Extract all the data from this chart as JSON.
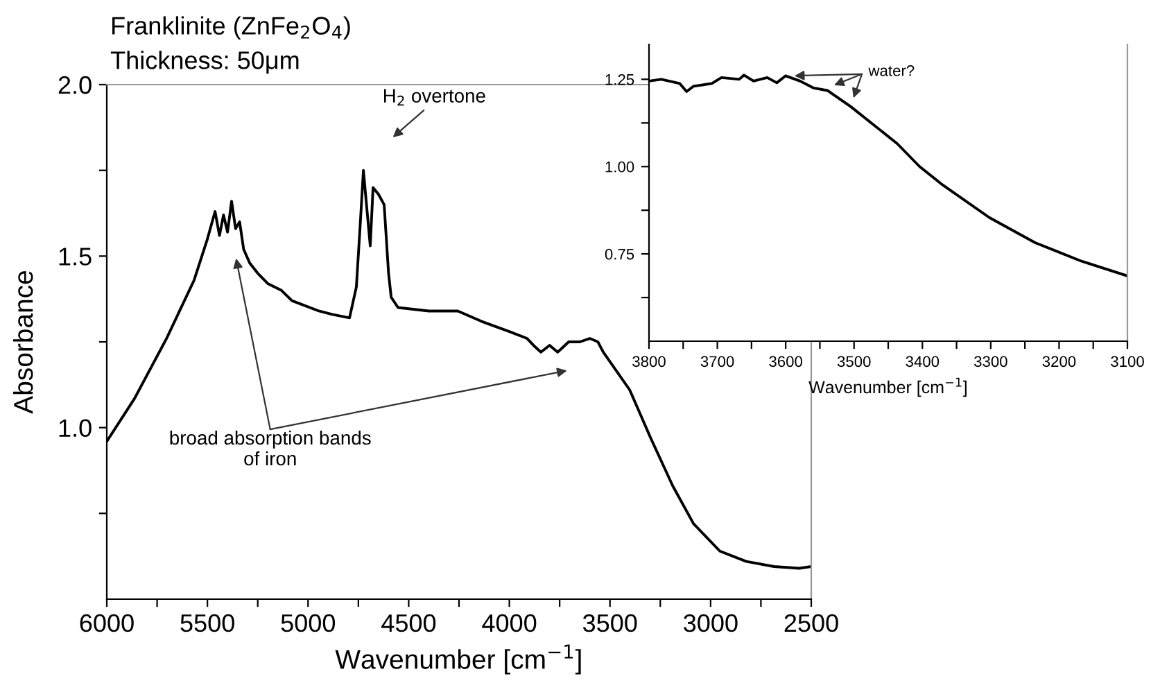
{
  "chart_data": [
    {
      "type": "line",
      "title": "Franklinite (ZnFe$_{2}$O$_{4}$)",
      "subtitle": "Thickness: 50μm",
      "xlabel": "Wavenumber [cm$^{−1}$]",
      "ylabel": "Absorbance",
      "xlim": [
        6000,
        2500
      ],
      "ylim": [
        0.5,
        2.0
      ],
      "xticks": [
        6000,
        {
          "value": 5750,
          "label": null
        },
        5500,
        {
          "value": 5250,
          "label": null
        },
        5000,
        {
          "value": 4750,
          "label": null
        },
        4500,
        {
          "value": 4250,
          "label": null
        },
        4000,
        {
          "value": 3750,
          "label": null
        },
        3500,
        {
          "value": 3250,
          "label": null
        },
        3000,
        {
          "value": 2750,
          "label": null
        },
        2500
      ],
      "yticks": [
        {
          "value": 0.75,
          "label": null
        },
        {
          "value": 1.0,
          "label": "1.0"
        },
        {
          "value": 1.25,
          "label": null
        },
        1.5,
        {
          "value": 1.75,
          "label": null
        },
        {
          "value": 2.0,
          "label": "2.0"
        }
      ],
      "grid": false,
      "legend": false,
      "marker": "none",
      "line_style": "solid",
      "series": [
        {
          "color": "#000000",
          "x": [
            6000,
            5862,
            5703,
            5566,
            5500,
            5462,
            5440,
            5420,
            5400,
            5380,
            5360,
            5340,
            5320,
            5290,
            5250,
            5200,
            5132,
            5080,
            5035,
            4946,
            4880,
            4794,
            4760,
            4740,
            4725,
            4705,
            4691,
            4677,
            4650,
            4622,
            4600,
            4587,
            4553,
            4400,
            4256,
            4139,
            4000,
            3912,
            3880,
            3843,
            3800,
            3760,
            3705,
            3650,
            3600,
            3560,
            3533,
            3402,
            3298,
            3188,
            3085,
            2954,
            2823,
            2685,
            2560,
            2500
          ],
          "values": [
            0.96,
            1.085,
            1.26,
            1.43,
            1.55,
            1.63,
            1.56,
            1.62,
            1.57,
            1.66,
            1.58,
            1.6,
            1.52,
            1.48,
            1.45,
            1.42,
            1.4,
            1.37,
            1.36,
            1.34,
            1.33,
            1.32,
            1.41,
            1.6,
            1.75,
            1.62,
            1.53,
            1.7,
            1.68,
            1.65,
            1.45,
            1.38,
            1.35,
            1.34,
            1.34,
            1.31,
            1.28,
            1.26,
            1.24,
            1.22,
            1.24,
            1.22,
            1.25,
            1.25,
            1.26,
            1.25,
            1.22,
            1.11,
            0.97,
            0.83,
            0.72,
            0.64,
            0.61,
            0.595,
            0.59,
            0.595
          ]
        }
      ],
      "annotations": [
        "H$_{2}$ overtone",
        "broad absorption bands\nof iron"
      ]
    },
    {
      "type": "line",
      "xlabel": "Wavenumber [cm$^{−1}$]",
      "xlim": [
        3800,
        3100
      ],
      "ylim": [
        0.5,
        1.35
      ],
      "xticks": [
        3800,
        {
          "value": 3750,
          "label": null
        },
        3700,
        {
          "value": 3650,
          "label": null
        },
        3600,
        {
          "value": 3550,
          "label": null
        },
        3500,
        {
          "value": 3450,
          "label": null
        },
        3400,
        {
          "value": 3350,
          "label": null
        },
        3300,
        {
          "value": 3250,
          "label": null
        },
        3200,
        {
          "value": 3150,
          "label": null
        },
        3100
      ],
      "yticks": [
        {
          "value": 0.625,
          "label": null
        },
        {
          "value": 0.75,
          "label": "0.75"
        },
        {
          "value": 0.875,
          "label": null
        },
        {
          "value": 1.0,
          "label": "1.00"
        },
        {
          "value": 1.125,
          "label": null
        },
        {
          "value": 1.25,
          "label": "1.25"
        }
      ],
      "grid": false,
      "legend": false,
      "marker": "none",
      "line_style": "solid",
      "series": [
        {
          "color": "#000000",
          "x": [
            3800,
            3782,
            3755,
            3745,
            3735,
            3708,
            3694,
            3668,
            3661,
            3647,
            3627,
            3613,
            3600,
            3579,
            3559,
            3539,
            3505,
            3437,
            3404,
            3370,
            3302,
            3235,
            3167,
            3100
          ],
          "values": [
            1.245,
            1.25,
            1.238,
            1.215,
            1.23,
            1.238,
            1.255,
            1.25,
            1.262,
            1.245,
            1.255,
            1.24,
            1.26,
            1.245,
            1.225,
            1.218,
            1.172,
            1.066,
            1.0,
            0.947,
            0.854,
            0.782,
            0.729,
            0.687
          ]
        }
      ],
      "annotations": [
        {
          "text": "water?",
          "x": 3590,
          "y": 1.26
        }
      ]
    }
  ]
}
